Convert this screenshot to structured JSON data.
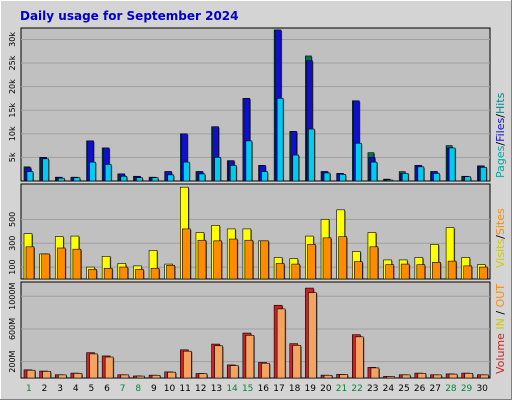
{
  "title": "Daily usage for September 2024",
  "colors": {
    "frame_bg": "#d4d4d4",
    "plot_bg": "#c0c0c0",
    "title": "#0000cc",
    "pages": "#006f5c",
    "files": "#1010cc",
    "hits": "#00ccee",
    "visits": "#ffff00",
    "sites": "#ff8c00",
    "kbytes": "#cc2222",
    "kbytes_in": "#ff8c00",
    "kbytes_out": "#cc9933",
    "weekend_label": "#00873c",
    "weekday_label": "#000000"
  },
  "legend": {
    "top": [
      {
        "text": "Pages",
        "color": "#00a7a7"
      },
      {
        "text": "Files",
        "color": "#1010cc"
      },
      {
        "text": "Hits",
        "color": "#008b8b"
      }
    ],
    "middle": [
      {
        "text": "Visits",
        "color": "#cccc00"
      },
      {
        "text": "Sites",
        "color": "#ff8c00"
      }
    ],
    "bottom": [
      {
        "text": "Volume",
        "color": "#cc2222"
      },
      {
        "text": "IN",
        "color": "#cccc00"
      },
      {
        "text": "OUT",
        "color": "#ff8c00"
      }
    ]
  },
  "chart_data": [
    {
      "type": "bar",
      "panel": "top",
      "categories": [
        "1",
        "2",
        "3",
        "4",
        "5",
        "6",
        "7",
        "8",
        "9",
        "10",
        "11",
        "12",
        "13",
        "14",
        "15",
        "16",
        "17",
        "18",
        "19",
        "20",
        "21",
        "22",
        "23",
        "24",
        "25",
        "26",
        "27",
        "28",
        "29",
        "30"
      ],
      "weekend_days": [
        "1",
        "7",
        "8",
        "14",
        "15",
        "21",
        "22",
        "28",
        "29"
      ],
      "ylim": [
        0,
        32000
      ],
      "yticks": [
        {
          "value": 5000,
          "label": "5k"
        },
        {
          "value": 10000,
          "label": "10k"
        },
        {
          "value": 15000,
          "label": "15k"
        },
        {
          "value": 20000,
          "label": "20k"
        },
        {
          "value": 25000,
          "label": "25k"
        },
        {
          "value": 30000,
          "label": "30k"
        }
      ],
      "series": [
        {
          "name": "Hits",
          "key": "hits",
          "values": [
            3000,
            5000,
            800,
            800,
            8500,
            7000,
            1500,
            1000,
            800,
            2000,
            10000,
            2000,
            11500,
            4300,
            17500,
            3300,
            32000,
            10500,
            26500,
            2000,
            1600,
            17000,
            6000,
            400,
            2000,
            3300,
            2000,
            7500,
            1000,
            3200
          ]
        },
        {
          "name": "Files",
          "key": "files",
          "values": [
            2800,
            5000,
            800,
            800,
            8500,
            7000,
            1500,
            1000,
            800,
            2000,
            10000,
            2000,
            11500,
            4300,
            17500,
            3300,
            32000,
            10500,
            25500,
            2000,
            1600,
            17000,
            5000,
            300,
            1600,
            3300,
            2000,
            7000,
            1000,
            3200
          ]
        },
        {
          "name": "Pages",
          "key": "pages",
          "values": [
            2000,
            4700,
            600,
            700,
            4000,
            3500,
            1000,
            700,
            700,
            1300,
            4000,
            1500,
            5000,
            3300,
            8500,
            2000,
            17500,
            5500,
            11000,
            1700,
            1400,
            8000,
            4000,
            200,
            1600,
            3000,
            1600,
            7000,
            900,
            2900
          ]
        }
      ]
    },
    {
      "type": "bar",
      "panel": "middle",
      "categories": [
        "1",
        "2",
        "3",
        "4",
        "5",
        "6",
        "7",
        "8",
        "9",
        "10",
        "11",
        "12",
        "13",
        "14",
        "15",
        "16",
        "17",
        "18",
        "19",
        "20",
        "21",
        "22",
        "23",
        "24",
        "25",
        "26",
        "27",
        "28",
        "29",
        "30"
      ],
      "ylim": [
        0,
        780
      ],
      "yticks": [
        {
          "value": 100,
          "label": "100"
        },
        {
          "value": 300,
          "label": "300"
        },
        {
          "value": 500,
          "label": "500"
        }
      ],
      "series": [
        {
          "name": "Visits",
          "key": "visits",
          "values": [
            380,
            210,
            355,
            360,
            100,
            190,
            130,
            110,
            240,
            125,
            770,
            390,
            450,
            420,
            420,
            320,
            180,
            170,
            360,
            500,
            580,
            230,
            390,
            160,
            160,
            180,
            290,
            430,
            180,
            120
          ]
        },
        {
          "name": "Sites",
          "key": "sites",
          "values": [
            270,
            210,
            260,
            250,
            80,
            90,
            100,
            80,
            90,
            115,
            420,
            325,
            320,
            335,
            325,
            320,
            130,
            125,
            290,
            345,
            355,
            145,
            270,
            120,
            125,
            120,
            140,
            150,
            110,
            100
          ]
        }
      ]
    },
    {
      "type": "bar",
      "panel": "bottom",
      "categories": [
        "1",
        "2",
        "3",
        "4",
        "5",
        "6",
        "7",
        "8",
        "9",
        "10",
        "11",
        "12",
        "13",
        "14",
        "15",
        "16",
        "17",
        "18",
        "19",
        "20",
        "21",
        "22",
        "23",
        "24",
        "25",
        "26",
        "27",
        "28",
        "29",
        "30"
      ],
      "ylim": [
        0,
        1150
      ],
      "yticks": [
        {
          "value": 200,
          "label": "200M"
        },
        {
          "value": 600,
          "label": "600M"
        },
        {
          "value": 1000,
          "label": "1000M"
        }
      ],
      "series": [
        {
          "name": "Volume",
          "key": "kbytes",
          "values": [
            100,
            85,
            40,
            60,
            310,
            270,
            40,
            25,
            35,
            75,
            345,
            55,
            415,
            160,
            550,
            190,
            890,
            420,
            1100,
            35,
            45,
            530,
            130,
            20,
            40,
            60,
            40,
            50,
            60,
            40
          ]
        }
      ]
    }
  ]
}
